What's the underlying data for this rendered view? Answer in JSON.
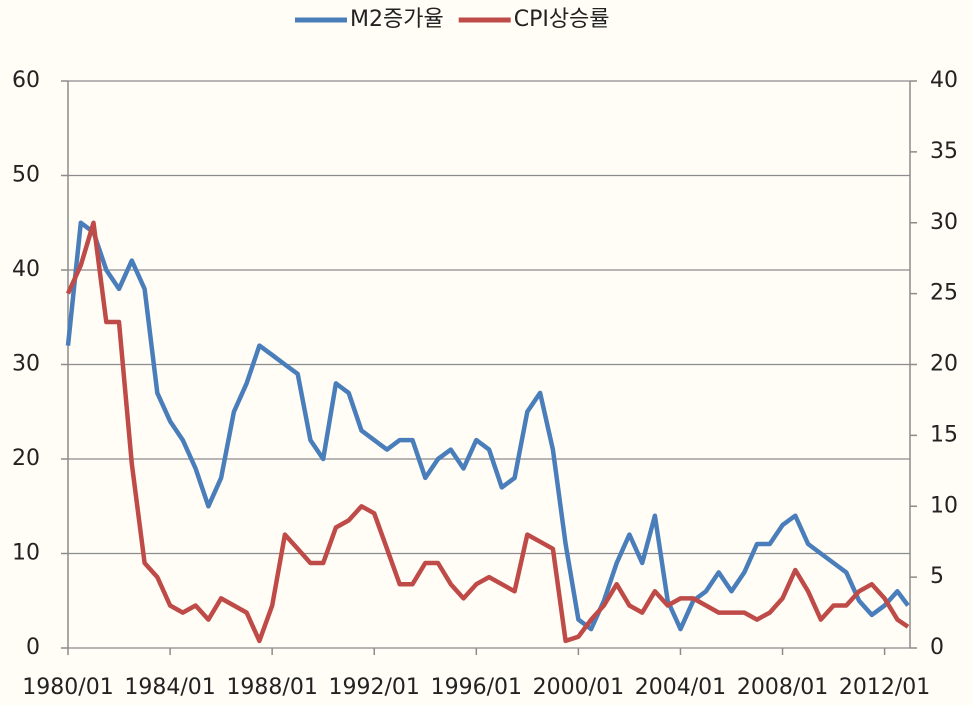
{
  "chart_data": {
    "type": "line",
    "x": [
      "1980/01",
      "1980/07",
      "1981/01",
      "1981/07",
      "1982/01",
      "1982/07",
      "1983/01",
      "1983/07",
      "1984/01",
      "1984/07",
      "1985/01",
      "1985/07",
      "1986/01",
      "1986/07",
      "1987/01",
      "1987/07",
      "1988/01",
      "1988/07",
      "1989/01",
      "1989/07",
      "1990/01",
      "1990/07",
      "1991/01",
      "1991/07",
      "1992/01",
      "1992/07",
      "1993/01",
      "1993/07",
      "1994/01",
      "1994/07",
      "1995/01",
      "1995/07",
      "1996/01",
      "1996/07",
      "1997/01",
      "1997/07",
      "1998/01",
      "1998/07",
      "1999/01",
      "1999/07",
      "2000/01",
      "2000/07",
      "2001/01",
      "2001/07",
      "2002/01",
      "2002/07",
      "2003/01",
      "2003/07",
      "2004/01",
      "2004/07",
      "2005/01",
      "2005/07",
      "2006/01",
      "2006/07",
      "2007/01",
      "2007/07",
      "2008/01",
      "2008/07",
      "2009/01",
      "2009/07",
      "2010/01",
      "2010/07",
      "2011/01",
      "2011/07",
      "2012/01",
      "2012/07",
      "2012/12"
    ],
    "series": [
      {
        "name": "M2증가율",
        "color": "#4a7ebb",
        "values": [
          32,
          45,
          44,
          40,
          38,
          41,
          38,
          27,
          24,
          22,
          19,
          15,
          18,
          25,
          28,
          32,
          31,
          30,
          29,
          22,
          20,
          28,
          27,
          23,
          22,
          21,
          22,
          22,
          18,
          20,
          21,
          19,
          22,
          21,
          17,
          18,
          25,
          27,
          21,
          11,
          3,
          2,
          5,
          9,
          12,
          9,
          14,
          5,
          2,
          5,
          6,
          8,
          6,
          8,
          11,
          11,
          13,
          14,
          11,
          10,
          9,
          8,
          5,
          3.5,
          4.5,
          6,
          4.5
        ]
      },
      {
        "name": "CPI상승률",
        "color": "#be4b48",
        "axis": "y2",
        "values": [
          25,
          27,
          30,
          23,
          23,
          13,
          6,
          5,
          3,
          2.5,
          3,
          2,
          3.5,
          3,
          2.5,
          0.5,
          3,
          8,
          7,
          6,
          6,
          8.5,
          9,
          10,
          9.5,
          7,
          4.5,
          4.5,
          6,
          6,
          4.5,
          3.5,
          4.5,
          5,
          4.5,
          4,
          8,
          7.5,
          7,
          0.5,
          0.8,
          2,
          3,
          4.5,
          3,
          2.5,
          4,
          3,
          3.5,
          3.5,
          3,
          2.5,
          2.5,
          2.5,
          2,
          2.5,
          3.5,
          5.5,
          4,
          2,
          3,
          3,
          4,
          4.5,
          3.5,
          2,
          1.5
        ]
      }
    ],
    "xticks": [
      "1980/01",
      "1984/01",
      "1988/01",
      "1992/01",
      "1996/01",
      "2000/01",
      "2004/01",
      "2008/01",
      "2012/01"
    ],
    "ylim": [
      0,
      60
    ],
    "yticks": [
      0,
      10,
      20,
      30,
      40,
      50,
      60
    ],
    "y2lim": [
      0,
      40
    ],
    "y2ticks": [
      0,
      5,
      10,
      15,
      20,
      25,
      30,
      35,
      40
    ],
    "grid": true,
    "legend": "top"
  }
}
